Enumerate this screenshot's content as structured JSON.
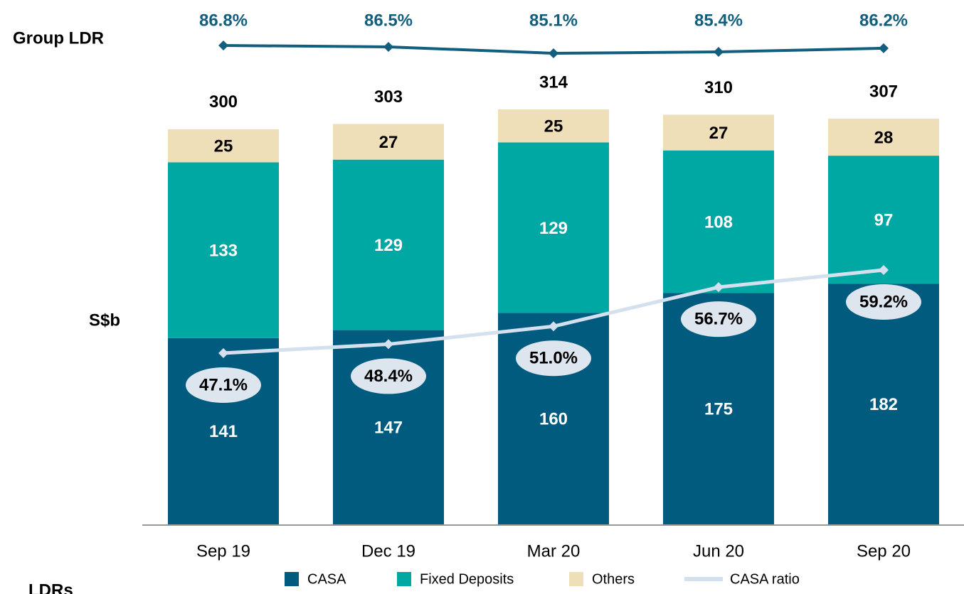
{
  "chart_data": {
    "type": "bar",
    "stacked": true,
    "categories": [
      "Sep 19",
      "Dec 19",
      "Mar 20",
      "Jun 20",
      "Sep 20"
    ],
    "series": [
      {
        "name": "CASA",
        "color": "#005b7f",
        "values": [
          141,
          147,
          160,
          175,
          182
        ]
      },
      {
        "name": "Fixed Deposits",
        "color": "#00a8a3",
        "values": [
          133,
          129,
          129,
          108,
          97
        ]
      },
      {
        "name": "Others",
        "color": "#eedfb9",
        "values": [
          25,
          27,
          25,
          27,
          28
        ]
      },
      {
        "name": "CASA ratio",
        "type": "line",
        "color": "#d5e0ee",
        "values": [
          47.1,
          48.4,
          51.0,
          56.7,
          59.2
        ],
        "value_labels": [
          "47.1%",
          "48.4%",
          "51.0%",
          "56.7%",
          "59.2%"
        ]
      }
    ],
    "totals": [
      300,
      303,
      314,
      310,
      307
    ],
    "group_ldr": {
      "name": "Group LDR",
      "color": "#125e7e",
      "values": [
        86.8,
        86.5,
        85.1,
        85.4,
        86.2
      ],
      "value_labels": [
        "86.8%",
        "86.5%",
        "85.1%",
        "85.4%",
        "86.2%"
      ]
    },
    "y_label": "S$b",
    "footer_label": "LDRs"
  }
}
